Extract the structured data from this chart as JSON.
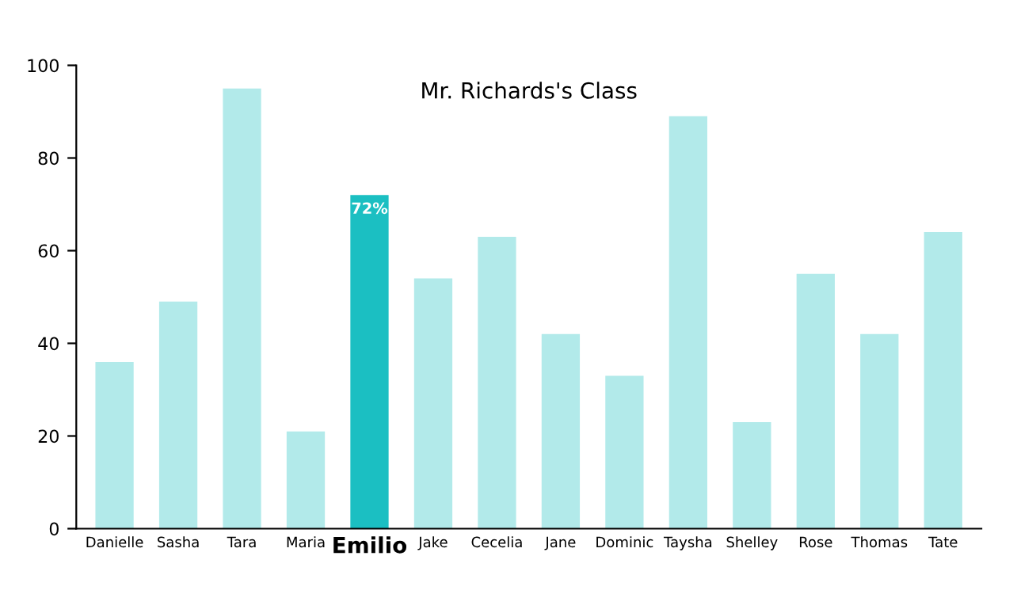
{
  "chart_data": {
    "type": "bar",
    "title": "Mr. Richards's Class",
    "categories": [
      "Danielle",
      "Sasha",
      "Tara",
      "Maria",
      "Emilio",
      "Jake",
      "Cecelia",
      "Jane",
      "Dominic",
      "Taysha",
      "Shelley",
      "Rose",
      "Thomas",
      "Tate"
    ],
    "values": [
      36,
      49,
      95,
      21,
      72,
      54,
      63,
      42,
      33,
      89,
      23,
      55,
      42,
      64
    ],
    "colors": [
      "#b2eaea",
      "#b2eaea",
      "#b2eaea",
      "#b2eaea",
      "#1bbfc2",
      "#b2eaea",
      "#b2eaea",
      "#b2eaea",
      "#b2eaea",
      "#b2eaea",
      "#b2eaea",
      "#b2eaea",
      "#b2eaea",
      "#b2eaea"
    ],
    "value_labels": [
      null,
      null,
      null,
      null,
      "72%",
      null,
      null,
      null,
      null,
      null,
      null,
      null,
      null,
      null
    ],
    "ylim": [
      0,
      100
    ],
    "yticks": [
      0,
      20,
      40,
      60,
      80,
      100
    ],
    "grid": false
  }
}
